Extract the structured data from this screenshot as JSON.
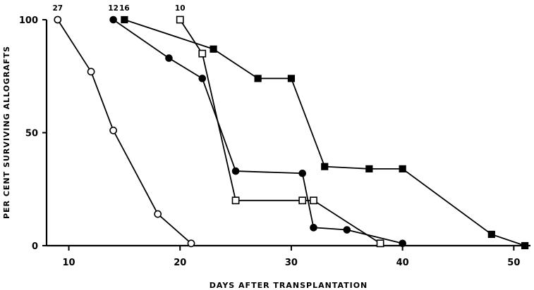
{
  "chart_data": {
    "type": "line",
    "xlabel": "Days after transplantation",
    "ylabel": "Per cent surviving allografts",
    "xlim": [
      8,
      51.5
    ],
    "ylim": [
      0,
      100
    ],
    "xticks": [
      10,
      20,
      30,
      40,
      50
    ],
    "yticks": [
      0,
      50,
      100
    ],
    "grid": false,
    "series": [
      {
        "marker": "open-circle",
        "n": "27",
        "x": [
          9,
          12,
          14,
          18,
          21
        ],
        "y": [
          100,
          77,
          51,
          14,
          1
        ]
      },
      {
        "marker": "filled-circle",
        "n": "12",
        "x": [
          14,
          19,
          22,
          25,
          31,
          32,
          35,
          40
        ],
        "y": [
          100,
          83,
          74,
          33,
          32,
          8,
          7,
          1
        ]
      },
      {
        "marker": "filled-square",
        "n": "16",
        "x": [
          15,
          23,
          27,
          30,
          33,
          37,
          40,
          48,
          51
        ],
        "y": [
          100,
          87,
          74,
          74,
          35,
          34,
          34,
          5,
          0
        ]
      },
      {
        "marker": "open-square",
        "n": "10",
        "x": [
          20,
          22,
          25,
          31,
          32,
          38
        ],
        "y": [
          100,
          85,
          20,
          20,
          20,
          1
        ]
      }
    ]
  }
}
